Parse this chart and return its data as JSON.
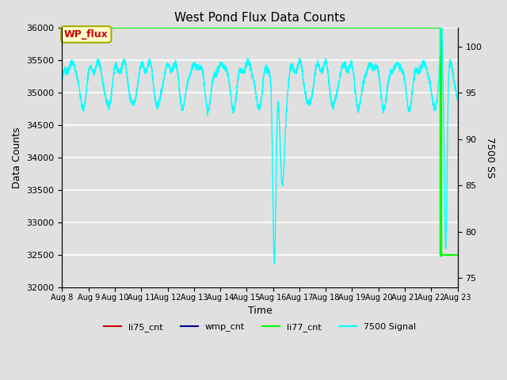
{
  "title": "West Pond Flux Data Counts",
  "xlabel": "Time",
  "ylabel_left": "Data Counts",
  "ylabel_right": "7500 SS",
  "ylim_left": [
    32000,
    36000
  ],
  "ylim_right": [
    74,
    102
  ],
  "x_tick_labels": [
    "Aug 8",
    "Aug 9",
    "Aug 10",
    "Aug 11",
    "Aug 12",
    "Aug 13",
    "Aug 14",
    "Aug 15",
    "Aug 16",
    "Aug 17",
    "Aug 18",
    "Aug 19",
    "Aug 20",
    "Aug 21",
    "Aug 22",
    "Aug 23"
  ],
  "bg_color": "#e0e0e0",
  "grid_color": "white",
  "li77_line_color": "#00ff00",
  "signal_color": "cyan",
  "wp_flux_box_color": "#ffffcc",
  "wp_flux_text_color": "#cc0000",
  "legend_items": [
    "li75_cnt",
    "wmp_cnt",
    "li77_cnt",
    "7500 Signal"
  ],
  "legend_colors": [
    "#cc0000",
    "#000099",
    "#00ff00",
    "cyan"
  ],
  "title_fontsize": 11
}
